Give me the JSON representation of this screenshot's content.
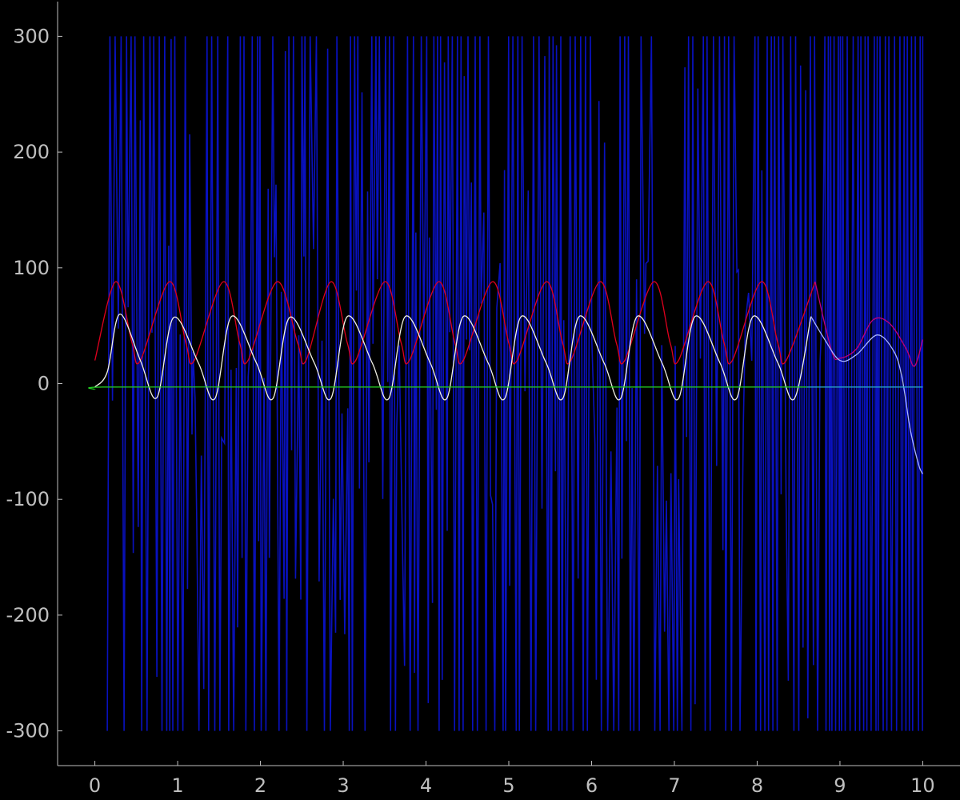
{
  "chart_data": {
    "type": "line",
    "title": "",
    "xlabel": "",
    "ylabel": "",
    "xlim": [
      -0.45,
      10.45
    ],
    "ylim": [
      -330,
      330
    ],
    "x_ticks": [
      0,
      1,
      2,
      3,
      4,
      5,
      6,
      7,
      8,
      9,
      10
    ],
    "x_tick_labels": [
      "0",
      "1",
      "2",
      "3",
      "4",
      "5",
      "6",
      "7",
      "8",
      "9",
      "10"
    ],
    "y_ticks": [
      300,
      200,
      100,
      0,
      -100,
      -200,
      -300
    ],
    "y_tick_labels": [
      "300",
      "200",
      "100",
      "0",
      "-100",
      "-200",
      "-300"
    ],
    "grid": false,
    "background": "#000000",
    "series": [
      {
        "color": "#0a12c8",
        "style": "dense-oscillation",
        "x_range": [
          0.15,
          10.0
        ],
        "value_range": [
          -300,
          300
        ],
        "note": "rapidly switching between about -300 and 300; from about 8.8 to 10 it spans about -300 to 300 continuously"
      },
      {
        "color": "#e0001e",
        "x": [
          0,
          0.25,
          0.45,
          0.55,
          0.9,
          1.1,
          1.2,
          1.55,
          1.75,
          1.85,
          2.2,
          2.45,
          2.55,
          2.85,
          3.05,
          3.15,
          3.5,
          3.7,
          3.8,
          4.15,
          4.35,
          4.45,
          4.8,
          5.0,
          5.1,
          5.45,
          5.65,
          5.75,
          6.1,
          6.3,
          6.4,
          6.75,
          6.95,
          7.05,
          7.4,
          7.6,
          7.7,
          8.05,
          8.25,
          8.35,
          8.7
        ],
        "y": [
          20,
          88,
          35,
          20,
          88,
          35,
          20,
          88,
          35,
          20,
          88,
          35,
          20,
          88,
          35,
          20,
          88,
          35,
          20,
          88,
          35,
          20,
          88,
          35,
          20,
          88,
          35,
          20,
          88,
          35,
          20,
          88,
          35,
          20,
          88,
          35,
          20,
          88,
          35,
          20,
          88
        ]
      },
      {
        "color": "#c0007a",
        "x": [
          8.7,
          8.9,
          9.0,
          9.2,
          9.4,
          9.6,
          9.8,
          9.9,
          10.0
        ],
        "y": [
          88,
          28,
          22,
          30,
          55,
          52,
          30,
          15,
          38
        ]
      },
      {
        "color": "#f2f2e6",
        "x": [
          0,
          0.15,
          0.3,
          0.55,
          0.75,
          0.95,
          1.25,
          1.45,
          1.65,
          1.95,
          2.15,
          2.35,
          2.65,
          2.85,
          3.05,
          3.35,
          3.55,
          3.75,
          4.05,
          4.25,
          4.45,
          4.75,
          4.95,
          5.15,
          5.45,
          5.65,
          5.85,
          6.15,
          6.35,
          6.55,
          6.85,
          7.05,
          7.25,
          7.55,
          7.75,
          7.95,
          8.25,
          8.45,
          8.65
        ],
        "y": [
          -3,
          10,
          60,
          20,
          -12,
          57,
          18,
          -13,
          58,
          18,
          -13,
          57,
          18,
          -13,
          58,
          18,
          -13,
          58,
          18,
          -13,
          58,
          18,
          -13,
          58,
          18,
          -13,
          58,
          18,
          -13,
          58,
          18,
          -13,
          58,
          18,
          -13,
          58,
          18,
          -13,
          58
        ]
      },
      {
        "color": "#a9b4ff",
        "x": [
          8.65,
          8.8,
          9.0,
          9.2,
          9.45,
          9.65,
          9.75,
          9.85,
          9.95,
          10.0
        ],
        "y": [
          58,
          40,
          20,
          25,
          42,
          28,
          5,
          -40,
          -70,
          -78
        ]
      },
      {
        "color": "#22cc22",
        "x": [
          0,
          0.1,
          2.0,
          4.0,
          6.0,
          8.0,
          8.6
        ],
        "y": [
          -5,
          -3,
          -3,
          -3,
          -3,
          -3,
          -3
        ]
      },
      {
        "color": "#2aa8c8",
        "x": [
          8.6,
          9.0,
          9.5,
          10.0
        ],
        "y": [
          -3,
          -3,
          -3,
          -3
        ]
      }
    ]
  }
}
